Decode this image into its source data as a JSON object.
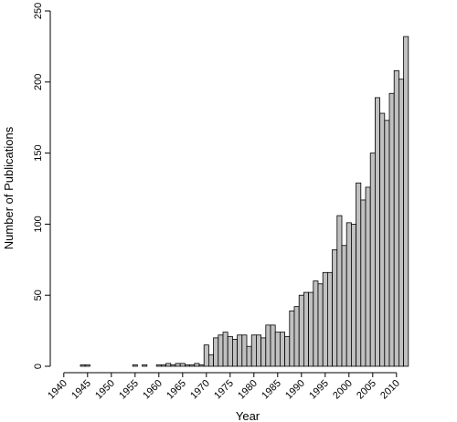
{
  "chart_data": {
    "type": "bar",
    "xlabel": "Year",
    "ylabel": "Number of Publications",
    "ylim": [
      0,
      250
    ],
    "yticks": [
      0,
      50,
      100,
      150,
      200,
      250
    ],
    "xticks": [
      1940,
      1945,
      1950,
      1955,
      1960,
      1965,
      1970,
      1975,
      1980,
      1985,
      1990,
      1995,
      2000,
      2005,
      2010
    ],
    "x": [
      1939,
      1940,
      1941,
      1942,
      1943,
      1944,
      1945,
      1946,
      1947,
      1948,
      1949,
      1950,
      1951,
      1952,
      1953,
      1954,
      1955,
      1956,
      1957,
      1958,
      1959,
      1960,
      1961,
      1962,
      1963,
      1964,
      1965,
      1966,
      1967,
      1968,
      1969,
      1970,
      1971,
      1972,
      1973,
      1974,
      1975,
      1976,
      1977,
      1978,
      1979,
      1980,
      1981,
      1982,
      1983,
      1984,
      1985,
      1986,
      1987,
      1988,
      1989,
      1990,
      1991,
      1992,
      1993,
      1994,
      1995,
      1996,
      1997,
      1998,
      1999,
      2000,
      2001,
      2002,
      2003,
      2004,
      2005,
      2006,
      2007,
      2008,
      2009,
      2010,
      2011,
      2012,
      2013
    ],
    "values": [
      0,
      0,
      0,
      0,
      0,
      1,
      1,
      0,
      0,
      0,
      0,
      0,
      0,
      0,
      0,
      0,
      1,
      0,
      1,
      0,
      0,
      1,
      1,
      2,
      1,
      2,
      2,
      1,
      1,
      2,
      1,
      15,
      8,
      20,
      22,
      24,
      21,
      19,
      22,
      22,
      14,
      22,
      22,
      20,
      29,
      29,
      24,
      24,
      21,
      39,
      42,
      50,
      52,
      52,
      60,
      58,
      66,
      66,
      82,
      106,
      85,
      101,
      100,
      129,
      117,
      126,
      150,
      189,
      178,
      173,
      192,
      208,
      202,
      232,
      0
    ]
  }
}
